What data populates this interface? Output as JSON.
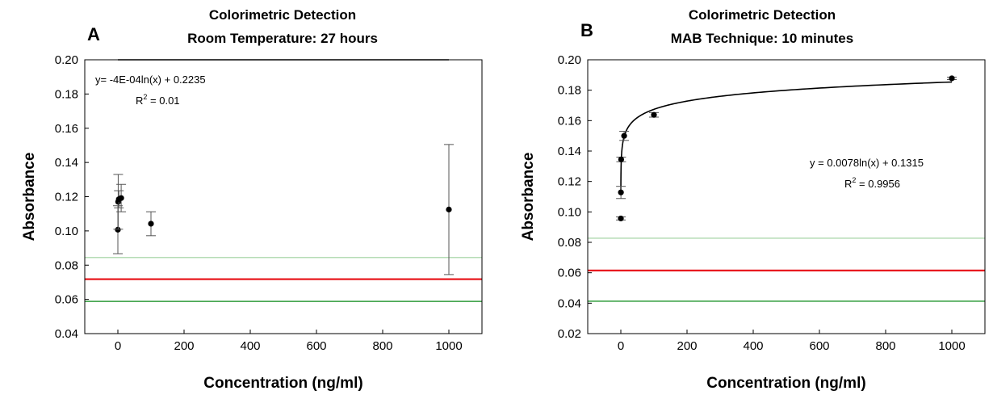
{
  "chart_data": [
    {
      "type": "scatter",
      "panel_letter": "A",
      "title_lines": [
        "Colorimetric Detection",
        "Room Temperature: 27 hours"
      ],
      "xlabel": "Concentration (ng/ml)",
      "ylabel": "Absorbance",
      "xlim": [
        -100,
        1100
      ],
      "ylim": [
        0.04,
        0.2
      ],
      "xticks": [
        0,
        200,
        400,
        600,
        800,
        1000
      ],
      "yticks": [
        0.04,
        0.06,
        0.08,
        0.1,
        0.12,
        0.14,
        0.16,
        0.18,
        0.2
      ],
      "x_tick_labels": [
        "0",
        "200",
        "400",
        "600",
        "800",
        "1000"
      ],
      "y_tick_labels": [
        "0.04",
        "0.06",
        "0.08",
        "0.10",
        "0.12",
        "0.14",
        "0.16",
        "0.18",
        "0.20"
      ],
      "grid": false,
      "points": [
        {
          "x": 0,
          "y": 0.1007,
          "err": 0.014
        },
        {
          "x": 1,
          "y": 0.117,
          "err": 0.016
        },
        {
          "x": 3,
          "y": 0.1185,
          "err": 0.005
        },
        {
          "x": 10,
          "y": 0.1192,
          "err": 0.008
        },
        {
          "x": 100,
          "y": 0.1042,
          "err": 0.007
        },
        {
          "x": 1000,
          "y": 0.1125,
          "err": 0.038
        }
      ],
      "fit": {
        "a": -0.0004,
        "b": 0.2235,
        "equation": "y= -4E-04ln(x) + 0.2235",
        "r2_prefix": "R",
        "r2_sup": "2",
        "r2_value": " = 0.01"
      },
      "reference_lines": [
        {
          "y": 0.0845,
          "color": "#b5dcb5"
        },
        {
          "y": 0.0718,
          "color": "#e8191f"
        },
        {
          "y": 0.0588,
          "color": "#2e9b3a"
        }
      ]
    },
    {
      "type": "scatter",
      "panel_letter": "B",
      "title_lines": [
        "Colorimetric Detection",
        "MAB Technique: 10 minutes"
      ],
      "xlabel": "Concentration (ng/ml)",
      "ylabel": "Absorbance",
      "xlim": [
        -100,
        1100
      ],
      "ylim": [
        0.02,
        0.2
      ],
      "xticks": [
        0,
        200,
        400,
        600,
        800,
        1000
      ],
      "yticks": [
        0.02,
        0.04,
        0.06,
        0.08,
        0.1,
        0.12,
        0.14,
        0.16,
        0.18,
        0.2
      ],
      "x_tick_labels": [
        "0",
        "200",
        "400",
        "600",
        "800",
        "1000"
      ],
      "y_tick_labels": [
        "0.02",
        "0.04",
        "0.06",
        "0.08",
        "0.10",
        "0.12",
        "0.14",
        "0.16",
        "0.18",
        "0.20"
      ],
      "grid": false,
      "points": [
        {
          "x": 0.1,
          "y": 0.0957,
          "err": 0.001
        },
        {
          "x": 0.3,
          "y": 0.1128,
          "err": 0.004
        },
        {
          "x": 1,
          "y": 0.1345,
          "err": 0.0015
        },
        {
          "x": 10,
          "y": 0.15,
          "err": 0.003
        },
        {
          "x": 100,
          "y": 0.1638,
          "err": 0.0015
        },
        {
          "x": 1000,
          "y": 0.1878,
          "err": 0.0008
        }
      ],
      "fit": {
        "a": 0.0078,
        "b": 0.1315,
        "equation": "y = 0.0078ln(x) + 0.1315",
        "r2_prefix": "R",
        "r2_sup": "2",
        "r2_value": " = 0.9956"
      },
      "reference_lines": [
        {
          "y": 0.0827,
          "color": "#b5dcb5"
        },
        {
          "y": 0.0615,
          "color": "#e8191f"
        },
        {
          "y": 0.0413,
          "color": "#2e9b3a"
        }
      ]
    }
  ]
}
